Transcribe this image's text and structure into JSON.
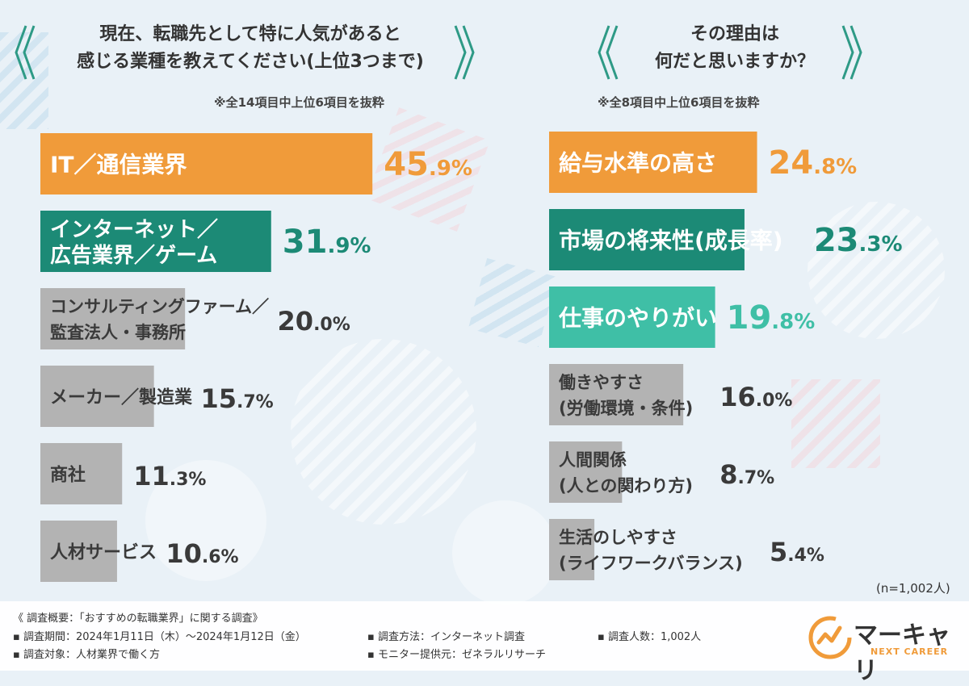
{
  "chart_data": [
    {
      "type": "bar",
      "orientation": "horizontal",
      "title": "現在、転職先として特に人気があると感じる業種を教えてください(上位3つまで)",
      "title_lines": [
        "現在、転職先として特に人気があると",
        "感じる業種を教えてください(上位3つまで)"
      ],
      "note": "※全14項目中上位6項目を抜粋",
      "categories": [
        [
          "IT／通信業界"
        ],
        [
          "インターネット／",
          "広告業界／ゲーム"
        ],
        [
          "コンサルティングファーム／",
          "監査法人・事務所"
        ],
        [
          "メーカー／製造業"
        ],
        [
          "商社"
        ],
        [
          "人材サービス"
        ]
      ],
      "values": [
        45.9,
        31.9,
        20.0,
        15.7,
        11.3,
        10.6
      ],
      "value_labels": [
        {
          "int": "45",
          "dec": ".9%"
        },
        {
          "int": "31",
          "dec": ".9%"
        },
        {
          "int": "20",
          "dec": ".0%"
        },
        {
          "int": "15",
          "dec": ".7%"
        },
        {
          "int": "11",
          "dec": ".3%"
        },
        {
          "int": "10",
          "dec": ".6%"
        }
      ],
      "unit": "%",
      "xlim": [
        0,
        48
      ]
    },
    {
      "type": "bar",
      "orientation": "horizontal",
      "title": "その理由は何だと思いますか？",
      "title_lines": [
        "その理由は",
        "何だと思いますか？"
      ],
      "note": "※全8項目中上位6項目を抜粋",
      "categories": [
        [
          "給与水準の高さ"
        ],
        [
          "市場の将来性(成長率)"
        ],
        [
          "仕事のやりがい"
        ],
        [
          "働きやすさ",
          "(労働環境・条件)"
        ],
        [
          "人間関係",
          "(人との関わり方)"
        ],
        [
          "生活のしやすさ",
          "(ライフワークバランス)"
        ]
      ],
      "values": [
        24.8,
        23.3,
        19.8,
        16.0,
        8.7,
        5.4
      ],
      "value_labels": [
        {
          "int": "24",
          "dec": ".8%"
        },
        {
          "int": "23",
          "dec": ".3%"
        },
        {
          "int": "19",
          "dec": ".8%"
        },
        {
          "int": "16",
          "dec": ".0%"
        },
        {
          "int": "8",
          "dec": ".7%"
        },
        {
          "int": "5",
          "dec": ".4%"
        }
      ],
      "unit": "%",
      "xlim": [
        0,
        26
      ],
      "sample_note": "(n=1,002人)"
    }
  ],
  "colors": {
    "orange": "#f09b3a",
    "teal_dark": "#1c8a76",
    "teal_light": "#3fbfa6",
    "gray": "#b3b3b3",
    "orange_text": "#f09b3a",
    "teal_dark_text": "#1c8a76",
    "teal_light_text": "#3fbfa6",
    "gray_text": "#3a3a3a"
  },
  "survey": {
    "summary": "《 調査概要：「おすすめの転職業界」に関する調査》",
    "period": "▪ 調査期間：2024年1月11日（木）～2024年1月12日（金）",
    "target": "▪ 調査対象：人材業界で働く方",
    "method": "▪ 調査方法：インターネット調査",
    "monitor": "▪ モニター提供元：ゼネラルリサーチ",
    "count": "▪ 調査人数：1,002人"
  },
  "logo": {
    "name": "マーキャリ",
    "sub": "NEXT CAREER"
  }
}
